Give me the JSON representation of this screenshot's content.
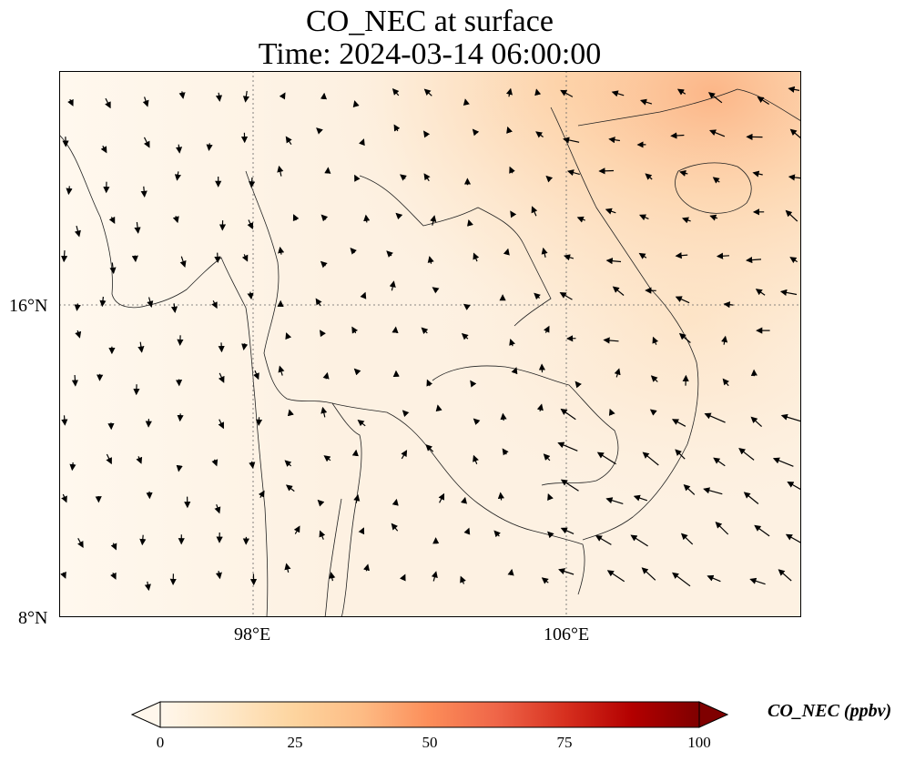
{
  "title": {
    "line1": "CO_NEC at surface",
    "line2": "Time: 2024-03-14 06:00:00"
  },
  "axes": {
    "lon_ticks": [
      "98°E",
      "106°E"
    ],
    "lat_ticks": [
      "16°N",
      "8°N"
    ],
    "lon_range": [
      93,
      112
    ],
    "lat_range": [
      8,
      22
    ]
  },
  "colorbar": {
    "label": "CO_NEC (ppbv)",
    "ticks": [
      "0",
      "25",
      "50",
      "75",
      "100"
    ],
    "range": [
      0,
      100
    ],
    "colormap": "OrRd",
    "colors": [
      "#fff7ec",
      "#fee8c8",
      "#fdd49e",
      "#fdbb84",
      "#fc8d59",
      "#ef6548",
      "#d7301f",
      "#b30000",
      "#7f0000"
    ],
    "extend": "both"
  },
  "field": {
    "background_color": "#fdf3e6",
    "high_region": "northeast (southern China coast, Gulf of Tonkin)",
    "wind_vectors": "black arrows"
  }
}
